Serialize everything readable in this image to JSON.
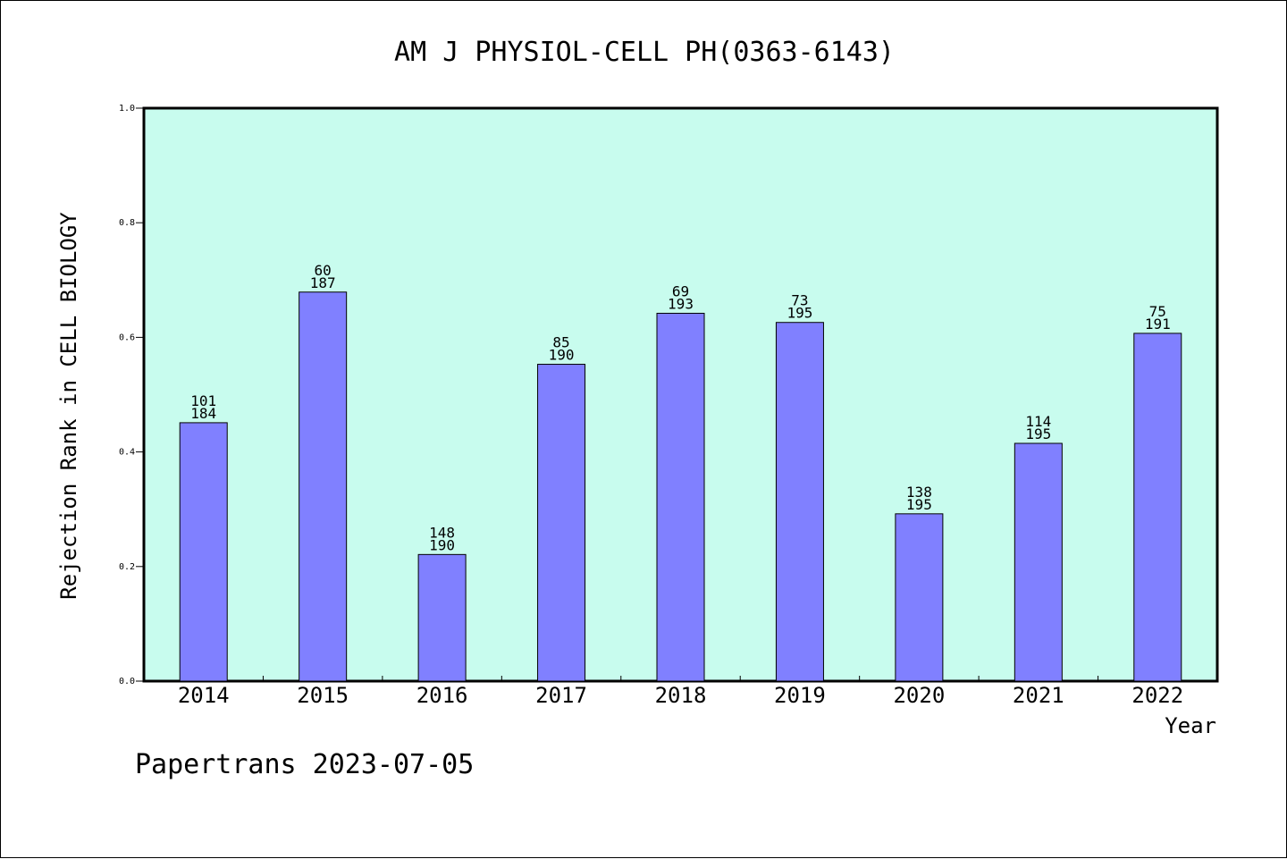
{
  "chart_data": {
    "type": "bar",
    "title": "AM J PHYSIOL-CELL PH(0363-6143)",
    "xlabel": "Year",
    "ylabel": "Rejection Rank in CELL BIOLOGY",
    "ylim": [
      0,
      1.0
    ],
    "yticks": [
      "0.0",
      "0.2",
      "0.4",
      "0.6",
      "0.8",
      "1.0"
    ],
    "grid": false,
    "categories": [
      "2014",
      "2015",
      "2016",
      "2017",
      "2018",
      "2019",
      "2020",
      "2021",
      "2022"
    ],
    "values": [
      0.451,
      0.679,
      0.221,
      0.553,
      0.642,
      0.626,
      0.292,
      0.415,
      0.607
    ],
    "labels_top": [
      "101",
      "60",
      "148",
      "85",
      "69",
      "73",
      "138",
      "114",
      "75"
    ],
    "labels_bottom": [
      "184",
      "187",
      "190",
      "190",
      "193",
      "195",
      "195",
      "195",
      "191"
    ],
    "colors": {
      "plot_background": "#c8fcee",
      "bar_fill": "#8080ff",
      "bar_stroke": "#000000",
      "axis": "#000000"
    }
  },
  "footer": {
    "text": "Papertrans 2023-07-05"
  }
}
